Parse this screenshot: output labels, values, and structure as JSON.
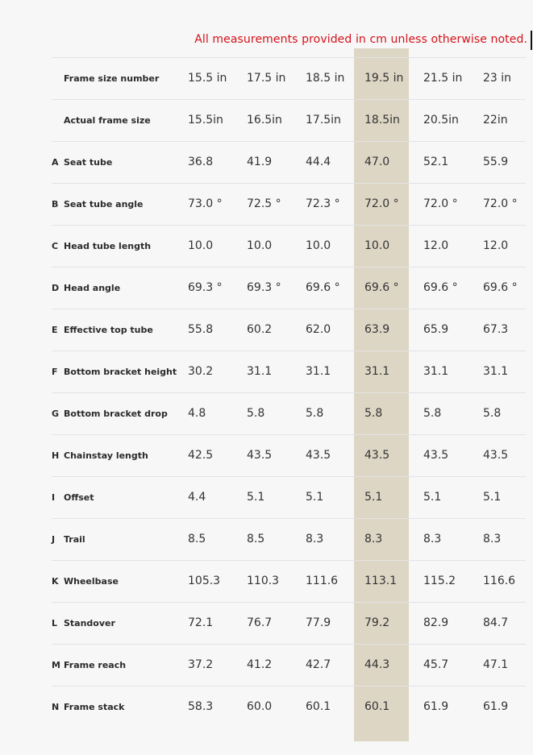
{
  "note": "All measurements provided in cm unless otherwise noted.",
  "highlight_color": "#ded6c5",
  "note_color": "#d4111a",
  "rows": [
    {
      "letter": "",
      "label": "Frame size number",
      "values": [
        "15.5 in",
        "17.5 in",
        "18.5 in",
        "19.5 in",
        "21.5 in",
        "23 in"
      ]
    },
    {
      "letter": "",
      "label": "Actual frame size",
      "values": [
        "15.5in",
        "16.5in",
        "17.5in",
        "18.5in",
        "20.5in",
        "22in"
      ]
    },
    {
      "letter": "A",
      "label": "Seat tube",
      "values": [
        "36.8",
        "41.9",
        "44.4",
        "47.0",
        "52.1",
        "55.9"
      ]
    },
    {
      "letter": "B",
      "label": "Seat tube angle",
      "values": [
        "73.0 °",
        "72.5 °",
        "72.3 °",
        "72.0 °",
        "72.0 °",
        "72.0 °"
      ]
    },
    {
      "letter": "C",
      "label": "Head tube length",
      "values": [
        "10.0",
        "10.0",
        "10.0",
        "10.0",
        "12.0",
        "12.0"
      ]
    },
    {
      "letter": "D",
      "label": "Head angle",
      "values": [
        "69.3 °",
        "69.3 °",
        "69.6 °",
        "69.6 °",
        "69.6 °",
        "69.6 °"
      ]
    },
    {
      "letter": "E",
      "label": "Effective top tube",
      "values": [
        "55.8",
        "60.2",
        "62.0",
        "63.9",
        "65.9",
        "67.3"
      ]
    },
    {
      "letter": "F",
      "label": "Bottom bracket height",
      "values": [
        "30.2",
        "31.1",
        "31.1",
        "31.1",
        "31.1",
        "31.1"
      ]
    },
    {
      "letter": "G",
      "label": "Bottom bracket drop",
      "values": [
        "4.8",
        "5.8",
        "5.8",
        "5.8",
        "5.8",
        "5.8"
      ]
    },
    {
      "letter": "H",
      "label": "Chainstay length",
      "values": [
        "42.5",
        "43.5",
        "43.5",
        "43.5",
        "43.5",
        "43.5"
      ]
    },
    {
      "letter": "I",
      "label": "Offset",
      "values": [
        "4.4",
        "5.1",
        "5.1",
        "5.1",
        "5.1",
        "5.1"
      ]
    },
    {
      "letter": "J",
      "label": "Trail",
      "values": [
        "8.5",
        "8.5",
        "8.3",
        "8.3",
        "8.3",
        "8.3"
      ]
    },
    {
      "letter": "K",
      "label": "Wheelbase",
      "values": [
        "105.3",
        "110.3",
        "111.6",
        "113.1",
        "115.2",
        "116.6"
      ]
    },
    {
      "letter": "L",
      "label": "Standover",
      "values": [
        "72.1",
        "76.7",
        "77.9",
        "79.2",
        "82.9",
        "84.7"
      ]
    },
    {
      "letter": "M",
      "label": "Frame reach",
      "values": [
        "37.2",
        "41.2",
        "42.7",
        "44.3",
        "45.7",
        "47.1"
      ]
    },
    {
      "letter": "N",
      "label": "Frame stack",
      "values": [
        "58.3",
        "60.0",
        "60.1",
        "60.1",
        "61.9",
        "61.9"
      ]
    }
  ]
}
